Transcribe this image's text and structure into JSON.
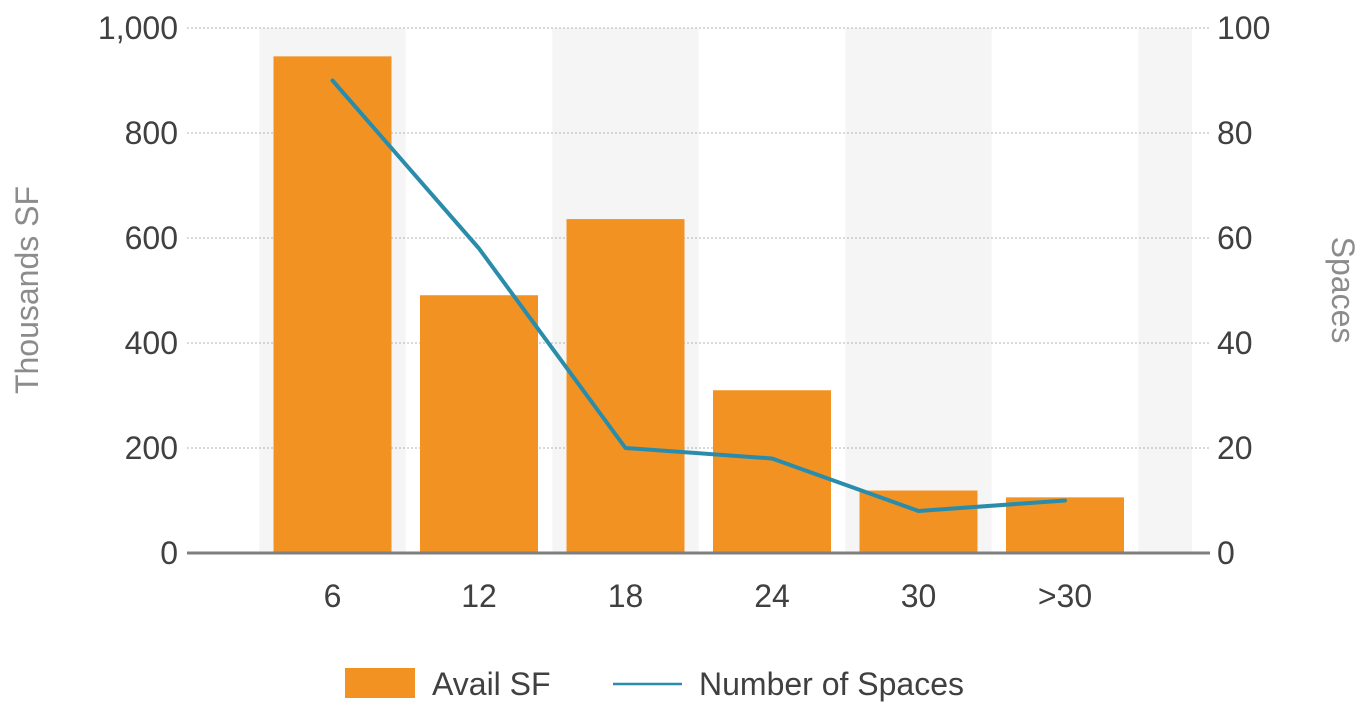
{
  "chart_data": {
    "type": "bar",
    "categories": [
      "6",
      "12",
      "18",
      "24",
      "30",
      ">30"
    ],
    "series": [
      {
        "name": "Avail SF",
        "type": "bar",
        "axis": "left",
        "values": [
          946,
          491,
          636,
          310,
          119,
          106
        ],
        "color": "#F29222"
      },
      {
        "name": "Number of Spaces",
        "type": "line",
        "axis": "right",
        "values": [
          90,
          58,
          20,
          18,
          8,
          10
        ],
        "color": "#2A8CAB"
      }
    ],
    "ylabel": "Thousands SF",
    "y2label": "Spaces",
    "ylim": [
      0,
      1000
    ],
    "y2lim": [
      0,
      100
    ],
    "yticks": [
      "0",
      "200",
      "400",
      "600",
      "800",
      "1,000"
    ],
    "yticks_values": [
      0,
      200,
      400,
      600,
      800,
      1000
    ],
    "y2ticks": [
      "0",
      "20",
      "40",
      "60",
      "80",
      "100"
    ],
    "y2ticks_values": [
      0,
      20,
      40,
      60,
      80,
      100
    ],
    "grid": true,
    "legend_position": "bottom",
    "colors": {
      "band": "#F5F5F5",
      "grid": "#B3B3B3",
      "baseline": "#7F7F7F",
      "tick_text": "#404040",
      "axis_title": "#8C8C8C"
    }
  }
}
